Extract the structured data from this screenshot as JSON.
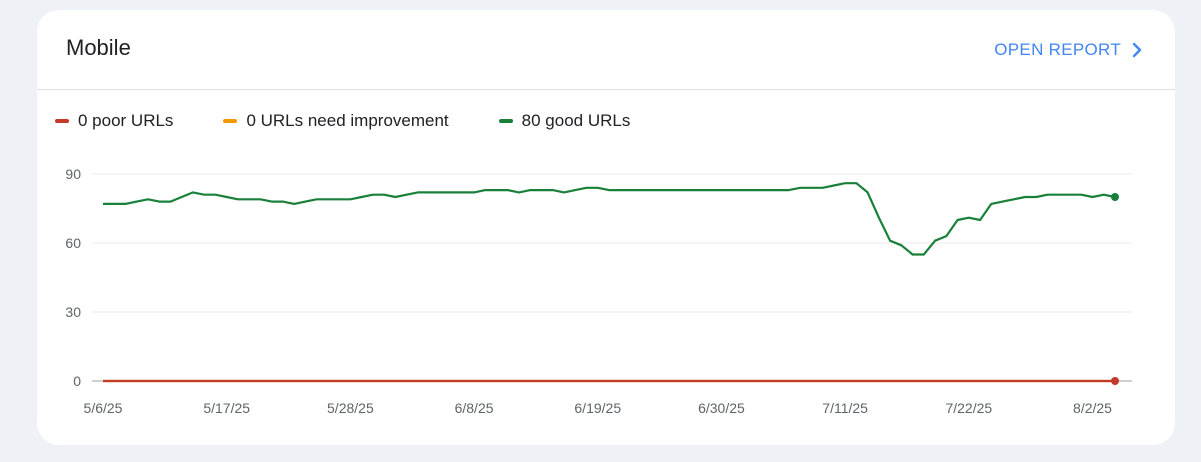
{
  "card": {
    "title": "Mobile",
    "open_report_label": "OPEN REPORT"
  },
  "legend": [
    {
      "label": "0 poor URLs",
      "color": "#c5392b"
    },
    {
      "label": "0 URLs need improvement",
      "color": "#f29900"
    },
    {
      "label": "80 good URLs",
      "color": "#188038"
    }
  ],
  "chart_data": {
    "type": "line",
    "ylim": [
      0,
      90
    ],
    "yticks": [
      0,
      30,
      60,
      90
    ],
    "xticks": [
      {
        "day": 0,
        "label": "5/6/25"
      },
      {
        "day": 11,
        "label": "5/17/25"
      },
      {
        "day": 22,
        "label": "5/28/25"
      },
      {
        "day": 33,
        "label": "6/8/25"
      },
      {
        "day": 44,
        "label": "6/19/25"
      },
      {
        "day": 55,
        "label": "6/30/25"
      },
      {
        "day": 66,
        "label": "7/11/25"
      },
      {
        "day": 77,
        "label": "7/22/25"
      },
      {
        "day": 88,
        "label": "8/2/25"
      }
    ],
    "series": [
      {
        "name": "good URLs",
        "color": "#188038",
        "values": [
          77,
          77,
          77,
          78,
          79,
          78,
          78,
          80,
          82,
          81,
          81,
          80,
          79,
          79,
          79,
          78,
          78,
          77,
          78,
          79,
          79,
          79,
          79,
          80,
          81,
          81,
          80,
          81,
          82,
          82,
          82,
          82,
          82,
          82,
          83,
          83,
          83,
          82,
          83,
          83,
          83,
          82,
          83,
          84,
          84,
          83,
          83,
          83,
          83,
          83,
          83,
          83,
          83,
          83,
          83,
          83,
          83,
          83,
          83,
          83,
          83,
          83,
          84,
          84,
          84,
          85,
          86,
          86,
          82,
          71,
          61,
          59,
          55,
          55,
          61,
          63,
          70,
          71,
          70,
          77,
          78,
          79,
          80,
          80,
          81,
          81,
          81,
          81,
          80,
          81,
          80
        ]
      },
      {
        "name": "need improvement",
        "color": "#f29900",
        "values": [
          0,
          0,
          0,
          0,
          0,
          0,
          0,
          0,
          0,
          0,
          0,
          0,
          0,
          0,
          0,
          0,
          0,
          0,
          0,
          0,
          0,
          0,
          0,
          0,
          0,
          0,
          0,
          0,
          0,
          0,
          0,
          0,
          0,
          0,
          0,
          0,
          0,
          0,
          0,
          0,
          0,
          0,
          0,
          0,
          0,
          0,
          0,
          0,
          0,
          0,
          0,
          0,
          0,
          0,
          0,
          0,
          0,
          0,
          0,
          0,
          0,
          0,
          0,
          0,
          0,
          0,
          0,
          0,
          0,
          0,
          0,
          0,
          0,
          0,
          0,
          0,
          0,
          0,
          0,
          0,
          0,
          0,
          0,
          0,
          0,
          0,
          0,
          0,
          0,
          0,
          0
        ]
      },
      {
        "name": "poor URLs",
        "color": "#c5392b",
        "values": [
          0,
          0,
          0,
          0,
          0,
          0,
          0,
          0,
          0,
          0,
          0,
          0,
          0,
          0,
          0,
          0,
          0,
          0,
          0,
          0,
          0,
          0,
          0,
          0,
          0,
          0,
          0,
          0,
          0,
          0,
          0,
          0,
          0,
          0,
          0,
          0,
          0,
          0,
          0,
          0,
          0,
          0,
          0,
          0,
          0,
          0,
          0,
          0,
          0,
          0,
          0,
          0,
          0,
          0,
          0,
          0,
          0,
          0,
          0,
          0,
          0,
          0,
          0,
          0,
          0,
          0,
          0,
          0,
          0,
          0,
          0,
          0,
          0,
          0,
          0,
          0,
          0,
          0,
          0,
          0,
          0,
          0,
          0,
          0,
          0,
          0,
          0,
          0,
          0,
          0,
          0
        ]
      }
    ]
  }
}
